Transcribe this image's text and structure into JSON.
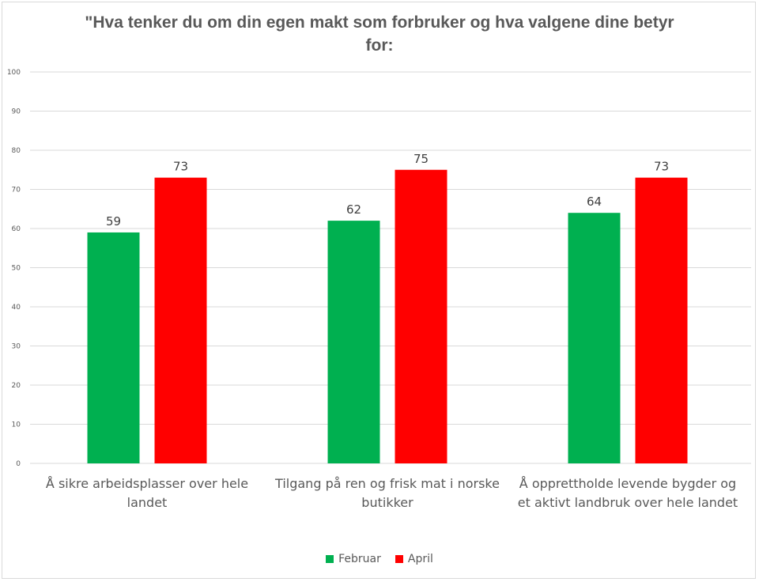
{
  "chart_data": {
    "type": "bar",
    "title": "\"Hva tenker du om din egen makt som forbruker og hva valgene dine betyr for:",
    "categories": [
      "Å sikre arbeidsplasser over hele landet",
      "Tilgang på ren og frisk mat i norske butikker",
      "Å opprettholde levende bygder og et aktivt landbruk over hele landet"
    ],
    "series": [
      {
        "name": "Februar",
        "values": [
          59,
          62,
          64
        ],
        "color": "#00b050"
      },
      {
        "name": "April",
        "values": [
          73,
          75,
          73
        ],
        "color": "#ff0000"
      }
    ],
    "ylim": [
      0,
      100
    ],
    "yticks": [
      0,
      10,
      20,
      30,
      40,
      50,
      60,
      70,
      80,
      90,
      100
    ],
    "grid": true,
    "data_labels": true,
    "legend": "bottom"
  }
}
